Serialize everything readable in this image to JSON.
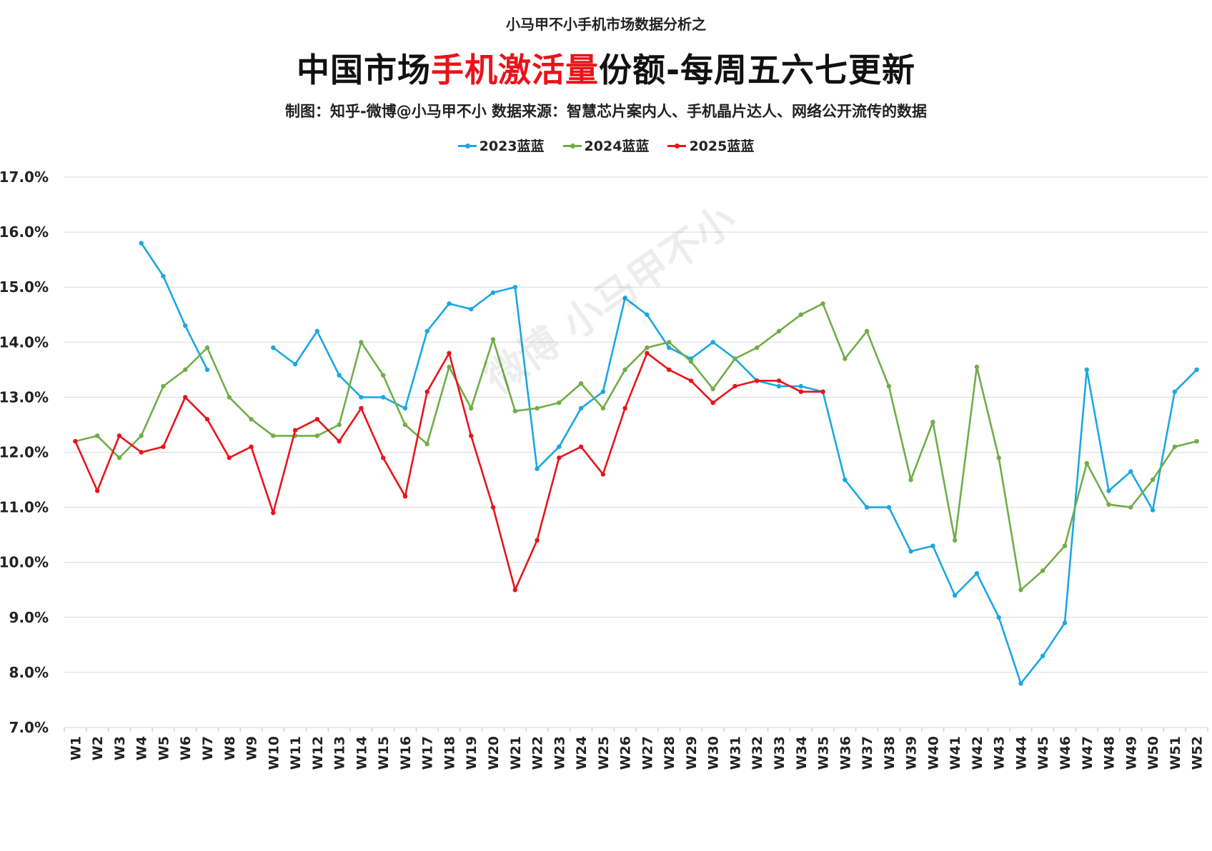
{
  "header": {
    "supertitle": "小马甲不小手机市场数据分析之",
    "title_pre": "中国市场",
    "title_highlight": "手机激活量",
    "title_post": "份额-每周五六七更新",
    "subtitle": "制图：知乎-微博@小马甲不小  数据来源：智慧芯片案内人、手机晶片达人、网络公开流传的数据",
    "watermark": "微博 小马甲不小"
  },
  "colors": {
    "s2023": "#1ba7e2",
    "s2024": "#70ad47",
    "s2025": "#e8141b",
    "grid": "#d9d9d9"
  },
  "chart_data": {
    "type": "line",
    "ylim": [
      7.0,
      17.0
    ],
    "yticks": [
      "7.0%",
      "8.0%",
      "9.0%",
      "10.0%",
      "11.0%",
      "12.0%",
      "13.0%",
      "14.0%",
      "15.0%",
      "16.0%",
      "17.0%"
    ],
    "categories": [
      "W1",
      "W2",
      "W3",
      "W4",
      "W5",
      "W6",
      "W7",
      "W8",
      "W9",
      "W10",
      "W11",
      "W12",
      "W13",
      "W14",
      "W15",
      "W16",
      "W17",
      "W18",
      "W19",
      "W20",
      "W21",
      "W22",
      "W23",
      "W24",
      "W25",
      "W26",
      "W27",
      "W28",
      "W29",
      "W30",
      "W31",
      "W32",
      "W33",
      "W34",
      "W35",
      "W36",
      "W37",
      "W38",
      "W39",
      "W40",
      "W41",
      "W42",
      "W43",
      "W44",
      "W45",
      "W46",
      "W47",
      "W48",
      "W49",
      "W50",
      "W51",
      "W52"
    ],
    "legend_position": "top",
    "grid": true,
    "series": [
      {
        "name": "2023蓝蓝",
        "color": "#1ba7e2",
        "values": [
          null,
          null,
          null,
          15.8,
          15.2,
          14.3,
          13.5,
          null,
          null,
          13.9,
          13.6,
          14.2,
          13.4,
          13.0,
          13.0,
          12.8,
          14.2,
          14.7,
          14.6,
          14.9,
          15.0,
          11.7,
          12.1,
          12.8,
          13.1,
          14.8,
          14.5,
          13.9,
          13.7,
          14.0,
          13.7,
          13.3,
          13.2,
          13.2,
          13.1,
          11.5,
          11.0,
          11.0,
          10.2,
          10.3,
          9.4,
          9.8,
          9.0,
          7.8,
          8.3,
          8.9,
          13.5,
          11.3,
          11.65,
          10.95,
          13.1,
          13.5
        ]
      },
      {
        "name": "2024蓝蓝",
        "color": "#70ad47",
        "values": [
          12.2,
          12.3,
          11.9,
          12.3,
          13.2,
          13.5,
          13.9,
          13.0,
          12.6,
          12.3,
          12.3,
          12.3,
          12.5,
          14.0,
          13.4,
          12.5,
          12.15,
          13.55,
          12.8,
          14.05,
          12.75,
          12.8,
          12.9,
          13.25,
          12.8,
          13.5,
          13.9,
          14.0,
          13.65,
          13.15,
          13.7,
          13.9,
          14.2,
          14.5,
          14.7,
          13.7,
          14.2,
          13.2,
          11.5,
          12.55,
          10.4,
          13.55,
          11.9,
          9.5,
          9.85,
          10.3,
          11.8,
          11.05,
          11.0,
          11.5,
          12.1,
          12.2
        ]
      },
      {
        "name": "2025蓝蓝",
        "color": "#e8141b",
        "values": [
          12.2,
          11.3,
          12.3,
          12.0,
          12.1,
          13.0,
          12.6,
          11.9,
          12.1,
          10.9,
          12.4,
          12.6,
          12.2,
          12.8,
          11.9,
          11.2,
          13.1,
          13.8,
          12.3,
          11.0,
          9.5,
          10.4,
          11.9,
          12.1,
          11.6,
          12.8,
          13.8,
          13.5,
          13.3,
          12.9,
          13.2,
          13.3,
          13.3,
          13.1,
          13.1,
          null,
          null,
          null,
          null,
          null,
          null,
          null,
          null,
          null,
          null,
          null,
          null,
          null,
          null,
          null,
          null,
          null
        ]
      }
    ]
  }
}
